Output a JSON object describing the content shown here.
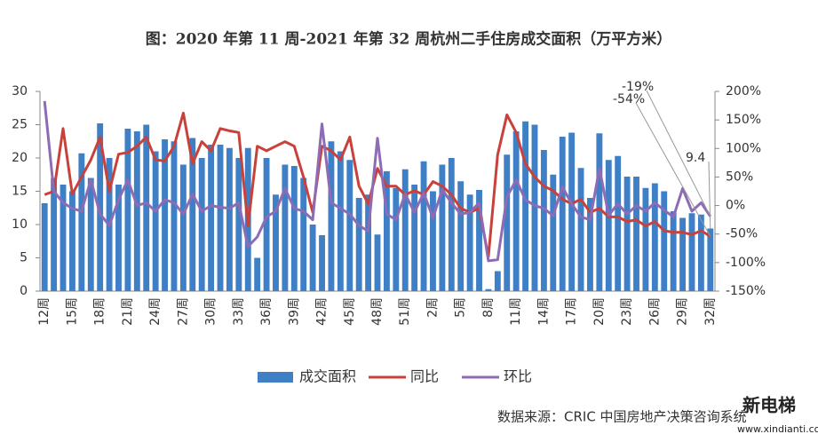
{
  "chart_data": {
    "type": "bar-line",
    "title": "图：2020 年第 11 周-2021 年第 32 周杭州二手住房成交面积（万平方米）",
    "source": "数据来源：CRIC 中国房地产决策咨询系统",
    "watermark": [
      "新电梯",
      "www.xindianti.com"
    ],
    "categories": [
      "12周",
      null,
      null,
      "15周",
      null,
      null,
      "18周",
      null,
      null,
      "21周",
      null,
      null,
      "24周",
      null,
      null,
      "27周",
      null,
      null,
      "30周",
      null,
      null,
      "33周",
      null,
      null,
      "36周",
      null,
      null,
      "39周",
      null,
      null,
      "42周",
      null,
      null,
      "45周",
      null,
      null,
      "48周",
      null,
      null,
      "51周",
      null,
      null,
      "2周",
      null,
      null,
      "5周",
      null,
      null,
      "8周",
      null,
      null,
      "11周",
      null,
      null,
      "14周",
      null,
      null,
      "17周",
      null,
      null,
      "20周",
      null,
      null,
      "23周",
      null,
      null,
      "26周",
      null,
      null,
      "29周",
      null,
      null,
      "32周"
    ],
    "series": [
      {
        "name": "成交面积",
        "color": "#3f7fc6",
        "axis": "y",
        "values": [
          13.2,
          17,
          16,
          15,
          20.7,
          17,
          25.2,
          20,
          16,
          24.4,
          24,
          25,
          21,
          22.8,
          22.5,
          19,
          23,
          20,
          22,
          22,
          21.5,
          20,
          21.5,
          5,
          20,
          14.5,
          19,
          18.8,
          17,
          10,
          8.4,
          22.5,
          21,
          19.7,
          14,
          14.5,
          8.5,
          18,
          15.5,
          18.3,
          16,
          19.5,
          15,
          19,
          20,
          16.5,
          14.5,
          15.2,
          0.3,
          3,
          20.5,
          24,
          25.5,
          25,
          21.2,
          17.5,
          23.2,
          23.8,
          18.5,
          14,
          23.7,
          19.7,
          20.3,
          17.2,
          17.2,
          15.5,
          16.2,
          15,
          12,
          11,
          11.7,
          11.5,
          9.4
        ]
      },
      {
        "name": "同比",
        "color": "#c8413b",
        "axis": "y2",
        "values": [
          19,
          25,
          135,
          20,
          50,
          80,
          120,
          25,
          90,
          93,
          104,
          120,
          80,
          78,
          104,
          162,
          73,
          112,
          96,
          135,
          131,
          128,
          -36,
          104,
          96,
          104,
          112,
          104,
          50,
          -12,
          104,
          96,
          80,
          120,
          34,
          3,
          65,
          34,
          34,
          19,
          26,
          19,
          42,
          34,
          19,
          -5,
          -12,
          -5,
          -90,
          89,
          159,
          128,
          73,
          50,
          34,
          26,
          11,
          3,
          11,
          -12,
          -5,
          -20,
          -20,
          -28,
          -25,
          -36,
          -28,
          -44,
          -47,
          -47,
          -51,
          -44,
          -54
        ]
      },
      {
        "name": "环比",
        "color": "#8e6bb5",
        "axis": "y2",
        "values": [
          183,
          25,
          5,
          -5,
          -10,
          45,
          -15,
          -35,
          10,
          45,
          0,
          5,
          -10,
          10,
          5,
          -15,
          20,
          -10,
          0,
          -3,
          -5,
          5,
          -72,
          -55,
          -20,
          -10,
          30,
          -5,
          -10,
          -25,
          143,
          5,
          -5,
          -15,
          -35,
          -45,
          118,
          -15,
          -25,
          20,
          -12,
          22,
          -22,
          28,
          5,
          -15,
          -12,
          5,
          -97,
          -95,
          15,
          45,
          10,
          0,
          -5,
          -18,
          33,
          3,
          -20,
          -25,
          65,
          -17,
          3,
          -15,
          0,
          -10,
          5,
          -8,
          -20,
          30,
          -10,
          5,
          -19
        ]
      }
    ],
    "annotations": [
      "-19%",
      "-54%",
      "9.4"
    ],
    "ylim": [
      0,
      30
    ],
    "yticks": [
      0,
      5,
      10,
      15,
      20,
      25,
      30
    ],
    "y2lim": [
      -150,
      200
    ],
    "y2ticks": [
      {
        "value": 200,
        "label": "200%"
      },
      {
        "value": 150,
        "label": "150%"
      },
      {
        "value": 100,
        "label": "100%"
      },
      {
        "value": 50,
        "label": "50%"
      },
      {
        "value": 0,
        "label": "0%"
      },
      {
        "value": -50,
        "label": "-50%"
      },
      {
        "value": -100,
        "label": "-100%"
      },
      {
        "value": -150,
        "label": "-150%"
      }
    ]
  }
}
